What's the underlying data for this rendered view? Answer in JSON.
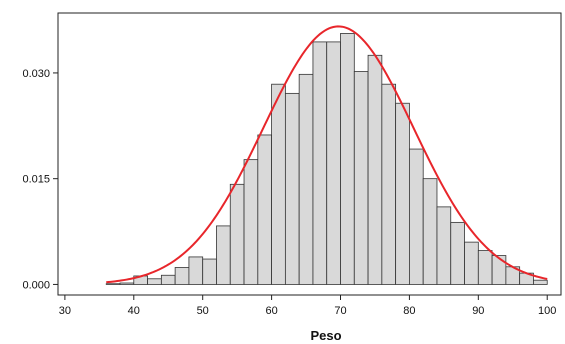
{
  "chart_data": {
    "type": "bar",
    "title": "",
    "xlabel": "Peso",
    "ylabel": "",
    "xlim": [
      29,
      102
    ],
    "ylim": [
      -0.0015,
      0.0385
    ],
    "grid": false,
    "x_ticks": [
      30,
      40,
      50,
      60,
      70,
      80,
      90,
      100
    ],
    "x_tick_labels": [
      "30",
      "40",
      "50",
      "60",
      "70",
      "80",
      "90",
      "100"
    ],
    "y_ticks": [
      0.0,
      0.015,
      0.03
    ],
    "y_tick_labels": [
      "0.000",
      "0.015",
      "0.030"
    ],
    "bin_width": 2,
    "bar_fill": "#d9d9d9",
    "bar_stroke": "#333333",
    "curve_color": "#e8262b",
    "bins": [
      {
        "start": 36,
        "value": 0.0001
      },
      {
        "start": 38,
        "value": 0.0002
      },
      {
        "start": 40,
        "value": 0.0012
      },
      {
        "start": 42,
        "value": 0.0008
      },
      {
        "start": 44,
        "value": 0.0013
      },
      {
        "start": 46,
        "value": 0.0024
      },
      {
        "start": 48,
        "value": 0.0039
      },
      {
        "start": 50,
        "value": 0.0036
      },
      {
        "start": 52,
        "value": 0.0083
      },
      {
        "start": 54,
        "value": 0.0142
      },
      {
        "start": 56,
        "value": 0.0177
      },
      {
        "start": 58,
        "value": 0.0212
      },
      {
        "start": 60,
        "value": 0.0284
      },
      {
        "start": 62,
        "value": 0.0271
      },
      {
        "start": 64,
        "value": 0.0298
      },
      {
        "start": 66,
        "value": 0.0344
      },
      {
        "start": 68,
        "value": 0.0344
      },
      {
        "start": 70,
        "value": 0.0356
      },
      {
        "start": 72,
        "value": 0.0302
      },
      {
        "start": 74,
        "value": 0.0325
      },
      {
        "start": 76,
        "value": 0.0284
      },
      {
        "start": 78,
        "value": 0.0257
      },
      {
        "start": 80,
        "value": 0.0192
      },
      {
        "start": 82,
        "value": 0.015
      },
      {
        "start": 84,
        "value": 0.011
      },
      {
        "start": 86,
        "value": 0.0088
      },
      {
        "start": 88,
        "value": 0.006
      },
      {
        "start": 90,
        "value": 0.0048
      },
      {
        "start": 92,
        "value": 0.0041
      },
      {
        "start": 94,
        "value": 0.0025
      },
      {
        "start": 96,
        "value": 0.0016
      },
      {
        "start": 98,
        "value": 0.0006
      }
    ],
    "normal_curve": {
      "mean": 69.7,
      "sd": 10.9,
      "x_range": [
        36,
        100
      ]
    }
  }
}
